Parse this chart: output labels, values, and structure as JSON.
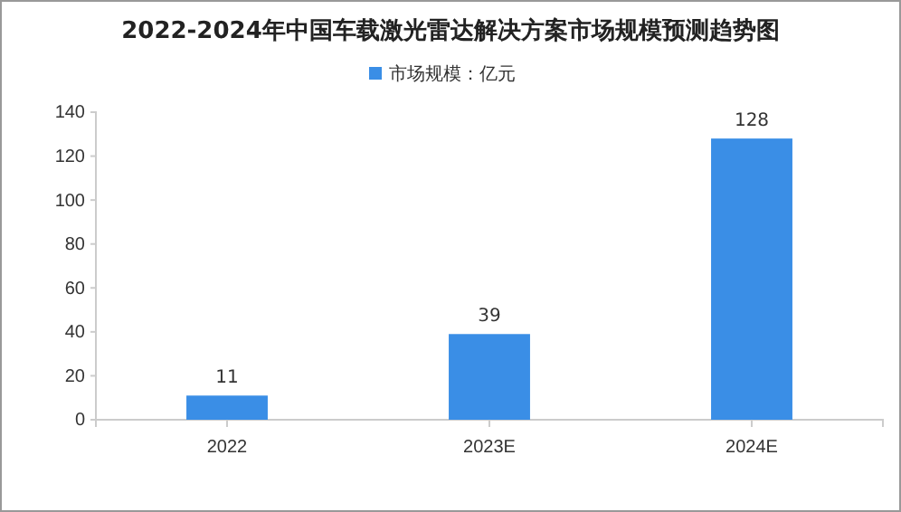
{
  "chart_data": {
    "type": "bar",
    "title": "2022-2024年中国车载激光雷达解决方案市场规模预测趋势图",
    "categories": [
      "2022",
      "2023E",
      "2024E"
    ],
    "series": [
      {
        "name": "市场规模：亿元",
        "color": "#3a8ee6",
        "values": [
          11,
          39,
          128
        ]
      }
    ],
    "ylim": [
      0,
      140
    ],
    "yticks": [
      0,
      20,
      40,
      60,
      80,
      100,
      120,
      140
    ],
    "data_labels": true,
    "legend": "top",
    "grid": false
  }
}
